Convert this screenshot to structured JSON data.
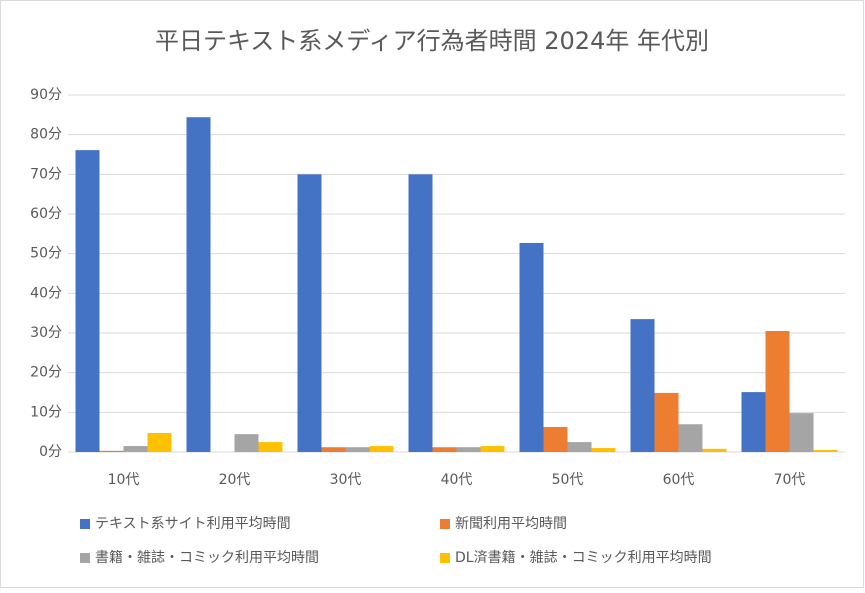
{
  "chart_data": {
    "type": "bar",
    "title": "平日テキスト系メディア行為者時間 2024年 年代別",
    "categories": [
      "10代",
      "20代",
      "30代",
      "40代",
      "50代",
      "60代",
      "70代"
    ],
    "series": [
      {
        "name": "テキスト系サイト利用平均時間",
        "color": "#4472c4",
        "values": [
          76.1,
          84.4,
          70.0,
          70.0,
          52.7,
          33.5,
          15.1
        ]
      },
      {
        "name": "新聞利用平均時間",
        "color": "#ed7d31",
        "values": [
          0.3,
          0,
          1.2,
          1.2,
          6.3,
          14.9,
          30.5
        ]
      },
      {
        "name": "書籍・雑誌・コミック利用平均時間",
        "color": "#a5a5a5",
        "values": [
          1.5,
          4.5,
          1.2,
          1.2,
          2.5,
          7.0,
          9.8
        ]
      },
      {
        "name": "DL済書籍・雑誌・コミック利用平均時間",
        "color": "#ffc000",
        "values": [
          4.8,
          2.5,
          1.5,
          1.5,
          1.0,
          0.8,
          0.5
        ]
      }
    ],
    "ylim": [
      0,
      90
    ],
    "yticks": [
      {
        "value": 0,
        "label": "0分"
      },
      {
        "value": 10,
        "label": "10分"
      },
      {
        "value": 20,
        "label": "20分"
      },
      {
        "value": 30,
        "label": "30分"
      },
      {
        "value": 40,
        "label": "40分"
      },
      {
        "value": 50,
        "label": "50分"
      },
      {
        "value": 60,
        "label": "60分"
      },
      {
        "value": 70,
        "label": "70分"
      },
      {
        "value": 80,
        "label": "80分"
      },
      {
        "value": 90,
        "label": "90分"
      }
    ],
    "grid": true
  }
}
